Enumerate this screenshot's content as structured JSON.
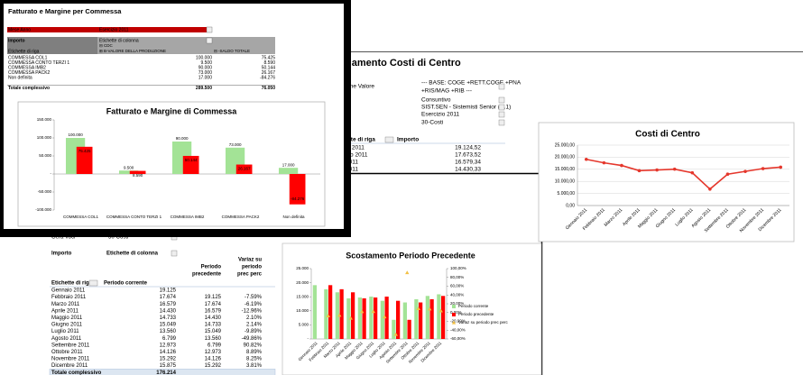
{
  "front": {
    "title": "Fatturato e Margine per Commessa",
    "filter": [
      "Mese Anno",
      "Esercizio 2011"
    ],
    "header": {
      "measure": "Importo",
      "columns": "Etichette di colonna",
      "cdc": "⊟ CDC",
      "rows_label": "Etichette di riga",
      "col1": "⊞ B-VALORE DELLA PRODUZIONE",
      "col2": "⊟ -SALDO TOTALE"
    },
    "rows": [
      [
        "COMMESSA COL1",
        "100.000",
        "75.425"
      ],
      [
        "COMMESSA CONTO TERZI 1",
        "9.500",
        "8.590"
      ],
      [
        "COMMESSA IMB2",
        "90.000",
        "50.144"
      ],
      [
        "COMMESSA PACK2",
        "73.000",
        "26.167"
      ],
      [
        "Non definita",
        "17.000",
        "-84.276"
      ],
      [
        "Totale complessivo",
        "289.500",
        "76.050"
      ]
    ]
  },
  "middle": {
    "title": "damento Costi di Centro",
    "fields": [
      [
        "urazione Valore",
        "--- BASE: COGE +RETT.COGE +PNA",
        "+RIS/MAG +RIB ---"
      ],
      [
        "rio",
        "Consuntivo"
      ],
      [
        "-Tipo",
        "SIST.SEN - Sistemisti Senior (C.1)"
      ],
      [
        "Esercizio 2011"
      ],
      [
        "Voci",
        "30-Costi"
      ]
    ],
    "header": [
      "ette di riga",
      "Importo"
    ],
    "rows": [
      [
        "io 2011",
        "19.124,52"
      ],
      [
        "aio 2011",
        "17.673,52"
      ],
      [
        "2011",
        "16.579,34"
      ],
      [
        "2011",
        "14.430,33"
      ]
    ]
  },
  "bottom": {
    "filter": [
      "Gera Voci",
      "30-Costi"
    ],
    "header": [
      "Importo",
      "Etichette di colonna"
    ],
    "columns": [
      "Etichette di riga",
      "Periodo corrente",
      "Periodo",
      "precedente",
      "Variaz su",
      "periodo",
      "prec perc"
    ],
    "rows": [
      [
        "Gennaio 2011",
        "19.125"
      ],
      [
        "Febbraio 2011",
        "17.674",
        "19.125",
        "-7.59%"
      ],
      [
        "Marzo 2011",
        "16.579",
        "17.674",
        "-6.19%"
      ],
      [
        "Aprile 2011",
        "14.430",
        "16.579",
        "-12.96%"
      ],
      [
        "Maggio 2011",
        "14.733",
        "14.430",
        "2.10%"
      ],
      [
        "Giugno 2011",
        "15.049",
        "14.733",
        "2.14%"
      ],
      [
        "Luglio 2011",
        "13.560",
        "15.049",
        "-9.89%"
      ],
      [
        "Agosto 2011",
        "6.799",
        "13.560",
        "-49.86%"
      ],
      [
        "Settembre 2011",
        "12.973",
        "6.799",
        "90.82%"
      ],
      [
        "Ottobre 2011",
        "14.126",
        "12.973",
        "8.89%"
      ],
      [
        "Novembre 2011",
        "15.292",
        "14.126",
        "8.25%"
      ],
      [
        "Dicembre 2011",
        "15.875",
        "15.292",
        "3.81%"
      ],
      [
        "Totale complessivo",
        "176.214"
      ]
    ]
  },
  "chart_data": [
    {
      "type": "bar",
      "title": "Fatturato e Margine di Commessa",
      "categories": [
        "COMMESSA COL1",
        "COMMESSA CONTO TERZI 1",
        "COMMESSA IMB2",
        "COMMESSA PACK2",
        "Non definita"
      ],
      "series": [
        {
          "color": "#a3e396",
          "values": [
            100000,
            9500,
            90000,
            73000,
            17000
          ],
          "value_labels": [
            "100.000",
            "9.500",
            "90.000",
            "73.000",
            "17.000"
          ]
        },
        {
          "color": "#ff0000",
          "values": [
            75425,
            8590,
            50144,
            26167,
            -84276
          ],
          "value_labels": [
            "75.425",
            "8.590",
            "50.144",
            "26.167",
            "-84.276"
          ]
        }
      ],
      "ylim": [
        -100000,
        150000
      ],
      "yticks": [
        {
          "value": -100000,
          "label": "-100.000"
        },
        {
          "value": -50000,
          "label": "-50.000"
        },
        {
          "value": 0,
          "label": "-"
        },
        {
          "value": 50000,
          "label": "50.000"
        },
        {
          "value": 100000,
          "label": "100.000"
        },
        {
          "value": 150000,
          "label": "150.000"
        }
      ],
      "grid": false
    },
    {
      "type": "line",
      "title": "Costi di Centro",
      "categories": [
        "Gennaio 2011",
        "Febbraio 2011",
        "Marzo 2011",
        "Aprile 2011",
        "Maggio 2011",
        "Giugno 2011",
        "Luglio 2011",
        "Agosto 2011",
        "Settembre 2011",
        "Ottobre 2011",
        "Novembre 2011",
        "Dicembre 2011"
      ],
      "series": [
        {
          "color": "#e5372c",
          "values": [
            19124.52,
            17673.52,
            16579.34,
            14430.33,
            14733,
            15049,
            13560,
            6799,
            12973,
            14126,
            15292,
            15875
          ]
        }
      ],
      "ylim": [
        0,
        25000
      ],
      "yticks": [
        {
          "value": 0,
          "label": "0,00"
        },
        {
          "value": 5000,
          "label": "5.000,00"
        },
        {
          "value": 10000,
          "label": "10.000,00"
        },
        {
          "value": 15000,
          "label": "15.000,00"
        },
        {
          "value": 20000,
          "label": "20.000,00"
        },
        {
          "value": 25000,
          "label": "25.000,00"
        }
      ],
      "grid": true
    },
    {
      "type": "bar",
      "title": "Scostamento Periodo Precedente",
      "categories": [
        "Gennaio 2011",
        "Febbraio 2011",
        "Marzo 2011",
        "Aprile 2011",
        "Maggio 2011",
        "Giugno 2011",
        "Luglio 2011",
        "Agosto 2011",
        "Settembre 2011",
        "Ottobre 2011",
        "Novembre 2011",
        "Dicembre 2011"
      ],
      "series": [
        {
          "name": "Periodo corrente",
          "color": "#a3e396",
          "values": [
            19125,
            17674,
            16579,
            14430,
            14733,
            15049,
            13560,
            6799,
            12973,
            14126,
            15292,
            15875
          ]
        },
        {
          "name": "Periodo precedente",
          "color": "#ff0000",
          "values": [
            null,
            19125,
            17674,
            16579,
            14430,
            14733,
            15049,
            13560,
            6799,
            12973,
            14126,
            15292
          ]
        },
        {
          "name": "Variaz su periodo prec perc",
          "color": "#f2c045",
          "type": "marker",
          "axis": "y2",
          "values": [
            null,
            -7.59,
            -6.19,
            -12.96,
            2.1,
            2.14,
            -9.89,
            -49.86,
            90.82,
            8.89,
            8.25,
            3.81
          ]
        }
      ],
      "ylim": [
        0,
        25000
      ],
      "yticks": [
        {
          "value": 0,
          "label": "-"
        },
        {
          "value": 5000,
          "label": "5.000"
        },
        {
          "value": 10000,
          "label": "10.000"
        },
        {
          "value": 15000,
          "label": "15.000"
        },
        {
          "value": 20000,
          "label": "20.000"
        },
        {
          "value": 25000,
          "label": "25.000"
        }
      ],
      "y2lim": [
        -60,
        100
      ],
      "y2ticks": [
        {
          "value": -60,
          "label": "-60,00%"
        },
        {
          "value": -40,
          "label": "-40,00%"
        },
        {
          "value": -20,
          "label": "-20,00%"
        },
        {
          "value": 0,
          "label": "0,00%"
        },
        {
          "value": 20,
          "label": "20,00%"
        },
        {
          "value": 40,
          "label": "40,00%"
        },
        {
          "value": 60,
          "label": "60,00%"
        },
        {
          "value": 80,
          "label": "80,00%"
        },
        {
          "value": 100,
          "label": "100,00%"
        }
      ],
      "grid": false,
      "legend": "right"
    }
  ]
}
